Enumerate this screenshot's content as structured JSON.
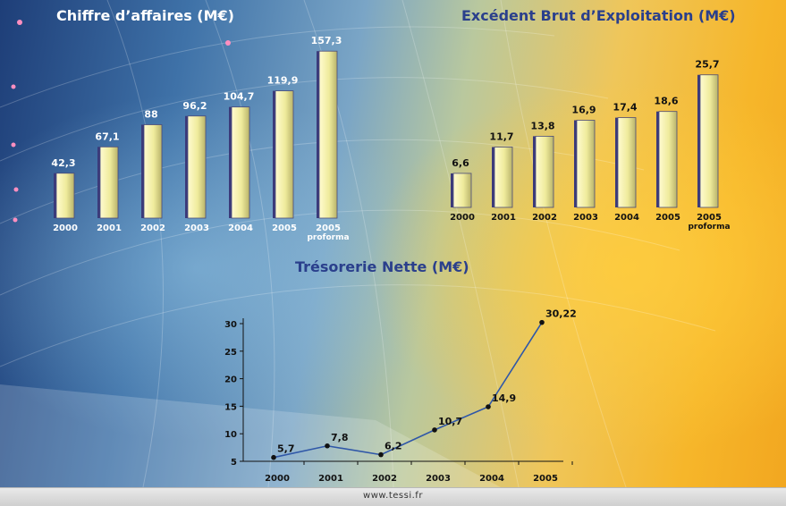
{
  "footer": {
    "url": "www.tessi.fr"
  },
  "colors": {
    "title_light": "#ffffff",
    "title_dark": "#2a3f8c",
    "bar_fill": "#efeb9c",
    "bar_shadow": "#3b3a7a",
    "line": "#2f57a8"
  },
  "chart_data": [
    {
      "type": "bar",
      "title": "Chiffre d’affaires (M€)",
      "categories": [
        "2000",
        "2001",
        "2002",
        "2003",
        "2004",
        "2005",
        "2005 proforma"
      ],
      "values": [
        42.3,
        67.1,
        88,
        96.2,
        104.7,
        119.9,
        157.3
      ],
      "value_labels": [
        "42,3",
        "67,1",
        "88",
        "96,2",
        "104,7",
        "119,9",
        "157,3"
      ],
      "ylim": [
        0,
        160
      ],
      "label_color": "#ffffff",
      "grid": false
    },
    {
      "type": "bar",
      "title": "Excédent Brut d’Exploitation (M€)",
      "categories": [
        "2000",
        "2001",
        "2002",
        "2003",
        "2004",
        "2005",
        "2005 proforma"
      ],
      "values": [
        6.6,
        11.7,
        13.8,
        16.9,
        17.4,
        18.6,
        25.7
      ],
      "value_labels": [
        "6,6",
        "11,7",
        "13,8",
        "16,9",
        "17,4",
        "18,6",
        "25,7"
      ],
      "ylim": [
        0,
        26
      ],
      "label_color": "#111111",
      "grid": false
    },
    {
      "type": "line",
      "title": "Trésorerie Nette (M€)",
      "categories": [
        "2000",
        "2001",
        "2002",
        "2003",
        "2004",
        "2005"
      ],
      "values": [
        5.7,
        7.8,
        6.2,
        10.7,
        14.9,
        30.22
      ],
      "value_labels": [
        "5,7",
        "7,8",
        "6,2",
        "10,7",
        "14,9",
        "30,22"
      ],
      "ylim": [
        5,
        30
      ],
      "yticks": [
        5,
        10,
        15,
        20,
        25,
        30
      ],
      "grid": false
    }
  ]
}
